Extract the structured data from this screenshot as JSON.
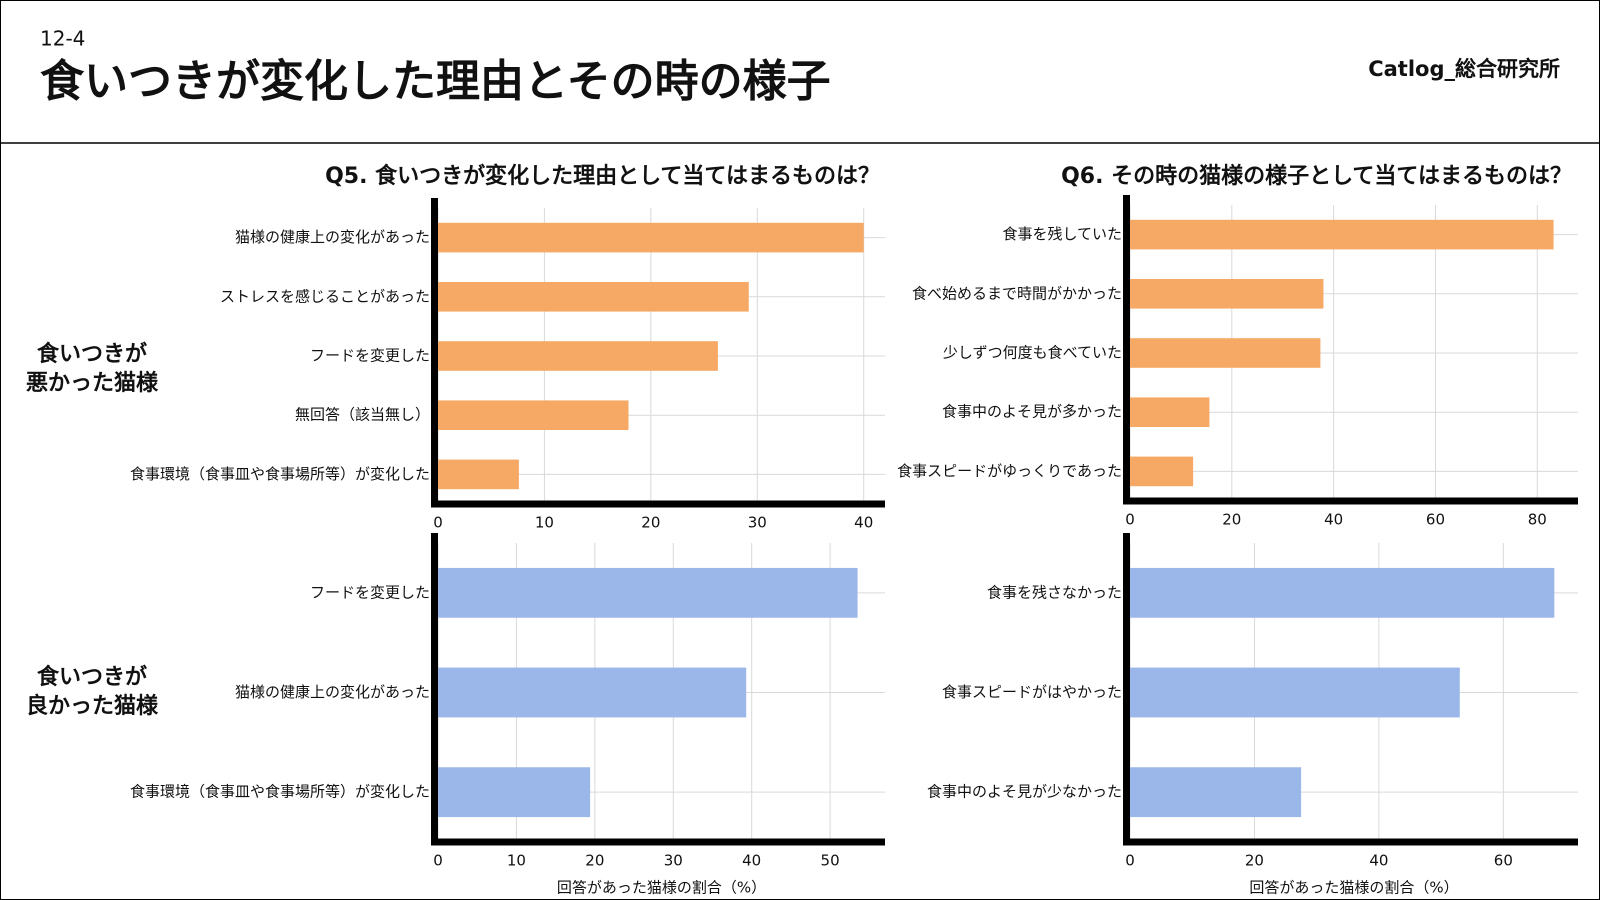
{
  "header": {
    "number": "12-4",
    "title": "食いつきが変化した理由とその時の様子",
    "brand": "Catlog_総合研究所"
  },
  "column_titles": [
    "Q5. 食いつきが変化した理由として当てはまるものは？",
    "Q6. その時の猫様の様子として当てはまるものは？"
  ],
  "row_labels": [
    [
      "食いつきが",
      "悪かった猫様"
    ],
    [
      "食いつきが",
      "良かった猫様"
    ]
  ],
  "chart_data": [
    {
      "type": "bar",
      "orientation": "horizontal",
      "color": "#f5a964",
      "grid": true,
      "categories": [
        "猫様の健康上の変化があった",
        "ストレスを感じることがあった",
        "フードを変更した",
        "無回答（該当無し）",
        "食事環境（食事皿や食事場所等）が変化した"
      ],
      "values": [
        40.0,
        29.2,
        26.3,
        17.9,
        7.6
      ],
      "xlim": [
        0,
        42
      ],
      "xticks": [
        0,
        10,
        20,
        30,
        40
      ]
    },
    {
      "type": "bar",
      "orientation": "horizontal",
      "color": "#f5a964",
      "grid": true,
      "categories": [
        "食事を残していた",
        "食べ始めるまで時間がかかった",
        "少しずつ何度も食べていた",
        "食事中のよそ見が多かった",
        "食事スピードがゆっくりであった"
      ],
      "values": [
        83.2,
        38.0,
        37.4,
        15.6,
        12.4
      ],
      "xlim": [
        0,
        88
      ],
      "xticks": [
        0,
        20,
        40,
        60,
        80
      ]
    },
    {
      "type": "bar",
      "orientation": "horizontal",
      "color": "#9bb6e8",
      "grid": true,
      "categories": [
        "フードを変更した",
        "猫様の健康上の変化があった",
        "食事環境（食事皿や食事場所等）が変化した"
      ],
      "values": [
        53.5,
        39.3,
        19.4
      ],
      "xlim": [
        0,
        57
      ],
      "xticks": [
        0,
        10,
        20,
        30,
        40,
        50
      ],
      "xlabel": "回答があった猫様の割合（%）"
    },
    {
      "type": "bar",
      "orientation": "horizontal",
      "color": "#9bb6e8",
      "grid": true,
      "categories": [
        "食事を残さなかった",
        "食事スピードがはやかった",
        "食事中のよそ見が少なかった"
      ],
      "values": [
        68.2,
        53.0,
        27.5
      ],
      "xlim": [
        0,
        72
      ],
      "xticks": [
        0,
        20,
        40,
        60
      ],
      "xlabel": "回答があった猫様の割合（%）"
    }
  ]
}
